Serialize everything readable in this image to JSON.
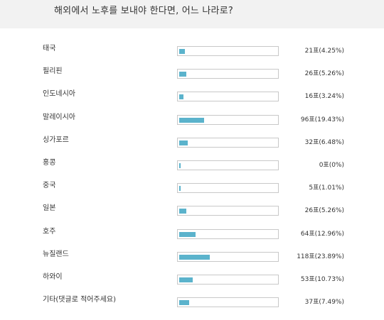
{
  "header": {
    "title": "해외에서 노후를 보내야 한다면, 어느 나라로?"
  },
  "poll": {
    "options": [
      {
        "label": "태국",
        "votes": 21,
        "percent": 4.25,
        "result": "21표(4.25%)"
      },
      {
        "label": "필리핀",
        "votes": 26,
        "percent": 5.26,
        "result": "26표(5.26%)"
      },
      {
        "label": "인도네시아",
        "votes": 16,
        "percent": 3.24,
        "result": "16표(3.24%)"
      },
      {
        "label": "말레이시아",
        "votes": 96,
        "percent": 19.43,
        "result": "96표(19.43%)"
      },
      {
        "label": "싱가포르",
        "votes": 32,
        "percent": 6.48,
        "result": "32표(6.48%)"
      },
      {
        "label": "홍콩",
        "votes": 0,
        "percent": 0,
        "result": "0표(0%)"
      },
      {
        "label": "중국",
        "votes": 5,
        "percent": 1.01,
        "result": "5표(1.01%)"
      },
      {
        "label": "일본",
        "votes": 26,
        "percent": 5.26,
        "result": "26표(5.26%)"
      },
      {
        "label": "호주",
        "votes": 64,
        "percent": 12.96,
        "result": "64표(12.96%)"
      },
      {
        "label": "뉴질랜드",
        "votes": 118,
        "percent": 23.89,
        "result": "118표(23.89%)"
      },
      {
        "label": "하와이",
        "votes": 53,
        "percent": 10.73,
        "result": "53표(10.73%)"
      },
      {
        "label": "기타(댓글로 적어주세요)",
        "votes": 37,
        "percent": 7.49,
        "result": "37표(7.49%)"
      }
    ],
    "bar_color": "#5bb3cc",
    "track_border_color": "#c8c8c8"
  }
}
